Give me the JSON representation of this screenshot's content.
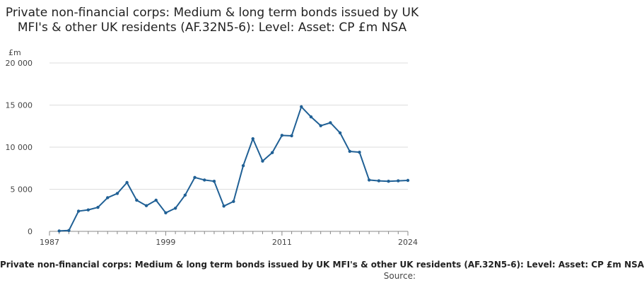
{
  "chart_data": {
    "type": "line",
    "title": "Private non-financial corps: Medium & long term bonds issued by UK MFI's & other UK residents (AF.32N5-6): Level: Asset: CP £m NSA",
    "ylabel": "£m",
    "xlabel": "",
    "xlim": [
      1987,
      2024
    ],
    "ylim": [
      0,
      20000
    ],
    "x_ticks": [
      1987,
      1999,
      2011,
      2024
    ],
    "y_ticks": [
      0,
      5000,
      10000,
      15000,
      20000
    ],
    "x_tick_labels": [
      "1987",
      "1999",
      "2011",
      "2024"
    ],
    "y_tick_labels": [
      "0",
      "5 000",
      "10 000",
      "15 000",
      "20 000"
    ],
    "grid": "horizontal",
    "legend": "none",
    "series": [
      {
        "color": "#206095",
        "x": [
          1988,
          1989,
          1990,
          1991,
          1992,
          1993,
          1994,
          1995,
          1996,
          1997,
          1998,
          1999,
          2000,
          2001,
          2002,
          2003,
          2004,
          2005,
          2006,
          2007,
          2008,
          2009,
          2010,
          2011,
          2012,
          2013,
          2014,
          2015,
          2016,
          2017,
          2018,
          2019,
          2020,
          2021,
          2022,
          2023,
          2024
        ],
        "values": [
          50,
          100,
          2400,
          2550,
          2850,
          4000,
          4500,
          5800,
          3700,
          3050,
          3700,
          2200,
          2750,
          4300,
          6400,
          6100,
          5950,
          3000,
          3550,
          7800,
          11000,
          8350,
          9350,
          11400,
          11350,
          14800,
          13600,
          12550,
          12900,
          11700,
          9500,
          9400,
          6100,
          6000,
          5950,
          6000,
          6050
        ]
      }
    ]
  },
  "footer": {
    "series_label": "Private non-financial corps: Medium & long term bonds issued by UK MFI's & other UK residents (AF.32N5-6): Level: Asset: CP £m NSA",
    "source": "Source:"
  }
}
